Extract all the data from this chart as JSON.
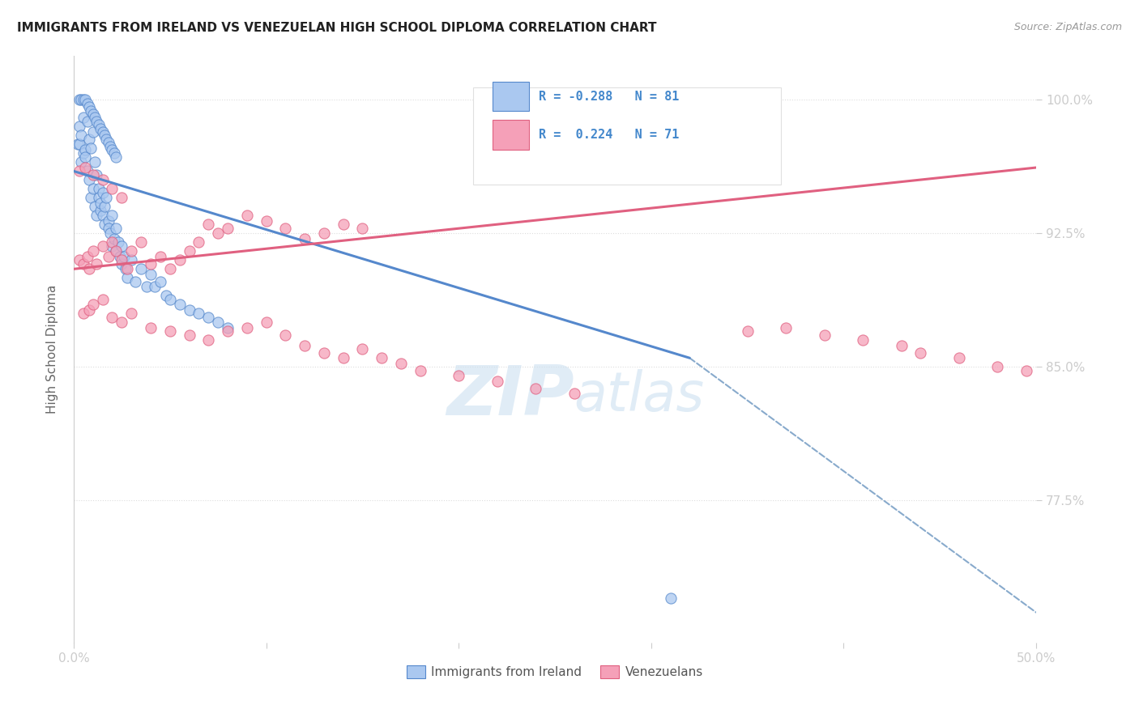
{
  "title": "IMMIGRANTS FROM IRELAND VS VENEZUELAN HIGH SCHOOL DIPLOMA CORRELATION CHART",
  "source": "Source: ZipAtlas.com",
  "ylabel": "High School Diploma",
  "legend_label1": "Immigrants from Ireland",
  "legend_label2": "Venezuelans",
  "color_ireland": "#aac8f0",
  "color_venezuela": "#f5a0b8",
  "color_line_ireland": "#5588cc",
  "color_line_venezuela": "#e06080",
  "color_dashed": "#88aacc",
  "color_axis": "#4488cc",
  "background": "#ffffff",
  "x_range": [
    0.0,
    0.5
  ],
  "y_range": [
    0.695,
    1.025
  ],
  "ireland_scatter_x": [
    0.002,
    0.003,
    0.003,
    0.004,
    0.004,
    0.005,
    0.005,
    0.006,
    0.006,
    0.007,
    0.007,
    0.008,
    0.008,
    0.009,
    0.009,
    0.01,
    0.01,
    0.011,
    0.011,
    0.012,
    0.012,
    0.013,
    0.013,
    0.014,
    0.014,
    0.015,
    0.015,
    0.016,
    0.016,
    0.017,
    0.018,
    0.018,
    0.019,
    0.02,
    0.02,
    0.021,
    0.022,
    0.022,
    0.023,
    0.024,
    0.025,
    0.025,
    0.026,
    0.027,
    0.028,
    0.03,
    0.032,
    0.035,
    0.038,
    0.04,
    0.042,
    0.045,
    0.048,
    0.05,
    0.055,
    0.06,
    0.065,
    0.07,
    0.075,
    0.08,
    0.003,
    0.004,
    0.005,
    0.006,
    0.007,
    0.008,
    0.009,
    0.01,
    0.011,
    0.012,
    0.013,
    0.014,
    0.015,
    0.016,
    0.017,
    0.018,
    0.019,
    0.02,
    0.021,
    0.022,
    0.31
  ],
  "ireland_scatter_y": [
    0.975,
    0.975,
    0.985,
    0.965,
    0.98,
    0.97,
    0.99,
    0.972,
    0.968,
    0.988,
    0.96,
    0.978,
    0.955,
    0.973,
    0.945,
    0.982,
    0.95,
    0.965,
    0.94,
    0.958,
    0.935,
    0.95,
    0.945,
    0.938,
    0.942,
    0.948,
    0.935,
    0.94,
    0.93,
    0.945,
    0.932,
    0.928,
    0.925,
    0.935,
    0.918,
    0.922,
    0.928,
    0.915,
    0.92,
    0.912,
    0.918,
    0.908,
    0.912,
    0.905,
    0.9,
    0.91,
    0.898,
    0.905,
    0.895,
    0.902,
    0.895,
    0.898,
    0.89,
    0.888,
    0.885,
    0.882,
    0.88,
    0.878,
    0.875,
    0.872,
    1.0,
    1.0,
    1.0,
    1.0,
    0.998,
    0.996,
    0.994,
    0.992,
    0.99,
    0.988,
    0.986,
    0.984,
    0.982,
    0.98,
    0.978,
    0.976,
    0.974,
    0.972,
    0.97,
    0.968,
    0.72
  ],
  "venezuela_scatter_x": [
    0.003,
    0.005,
    0.007,
    0.008,
    0.01,
    0.012,
    0.015,
    0.018,
    0.02,
    0.022,
    0.025,
    0.028,
    0.03,
    0.035,
    0.04,
    0.045,
    0.05,
    0.055,
    0.06,
    0.065,
    0.07,
    0.075,
    0.08,
    0.09,
    0.1,
    0.11,
    0.12,
    0.13,
    0.14,
    0.15,
    0.005,
    0.008,
    0.01,
    0.015,
    0.02,
    0.025,
    0.03,
    0.04,
    0.05,
    0.06,
    0.07,
    0.08,
    0.09,
    0.1,
    0.11,
    0.12,
    0.13,
    0.14,
    0.15,
    0.16,
    0.17,
    0.18,
    0.2,
    0.22,
    0.24,
    0.26,
    0.35,
    0.37,
    0.39,
    0.41,
    0.43,
    0.44,
    0.46,
    0.48,
    0.495,
    0.003,
    0.006,
    0.01,
    0.015,
    0.02,
    0.025
  ],
  "venezuela_scatter_y": [
    0.91,
    0.908,
    0.912,
    0.905,
    0.915,
    0.908,
    0.918,
    0.912,
    0.92,
    0.915,
    0.91,
    0.905,
    0.915,
    0.92,
    0.908,
    0.912,
    0.905,
    0.91,
    0.915,
    0.92,
    0.93,
    0.925,
    0.928,
    0.935,
    0.932,
    0.928,
    0.922,
    0.925,
    0.93,
    0.928,
    0.88,
    0.882,
    0.885,
    0.888,
    0.878,
    0.875,
    0.88,
    0.872,
    0.87,
    0.868,
    0.865,
    0.87,
    0.872,
    0.875,
    0.868,
    0.862,
    0.858,
    0.855,
    0.86,
    0.855,
    0.852,
    0.848,
    0.845,
    0.842,
    0.838,
    0.835,
    0.87,
    0.872,
    0.868,
    0.865,
    0.862,
    0.858,
    0.855,
    0.85,
    0.848,
    0.96,
    0.962,
    0.958,
    0.955,
    0.95,
    0.945
  ],
  "blue_line_x": [
    0.0,
    0.32
  ],
  "blue_line_y": [
    0.96,
    0.855
  ],
  "pink_line_x": [
    0.0,
    0.5
  ],
  "pink_line_y": [
    0.905,
    0.962
  ],
  "dashed_line_x": [
    0.32,
    0.5
  ],
  "dashed_line_y": [
    0.855,
    0.712
  ]
}
